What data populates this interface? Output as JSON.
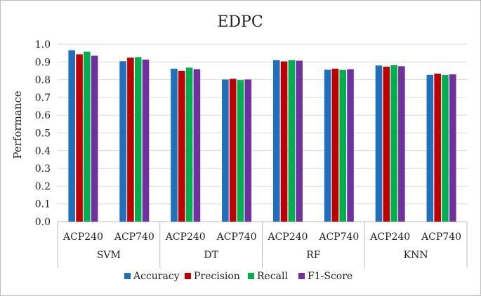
{
  "chart_data": {
    "type": "bar",
    "title": "EDPC",
    "ylabel": "Performance",
    "xlabel": "",
    "ylim": [
      0,
      1
    ],
    "yticks": [
      "0.0",
      "0.1",
      "0.2",
      "0.3",
      "0.4",
      "0.5",
      "0.6",
      "0.7",
      "0.8",
      "0.9",
      "1.0"
    ],
    "groups": [
      "SVM",
      "DT",
      "RF",
      "KNN"
    ],
    "categories": [
      "ACP240",
      "ACP740",
      "ACP240",
      "ACP740",
      "ACP240",
      "ACP740",
      "ACP240",
      "ACP740"
    ],
    "legend_position": "bottom",
    "series": [
      {
        "name": "Accuracy",
        "color": "#1f6fbf",
        "values": [
          0.966,
          0.904,
          0.862,
          0.801,
          0.91,
          0.856,
          0.88,
          0.827
        ]
      },
      {
        "name": "Precision",
        "color": "#c00000",
        "values": [
          0.943,
          0.924,
          0.85,
          0.805,
          0.903,
          0.862,
          0.873,
          0.834
        ]
      },
      {
        "name": "Recall",
        "color": "#00b050",
        "values": [
          0.958,
          0.927,
          0.868,
          0.798,
          0.91,
          0.855,
          0.882,
          0.826
        ]
      },
      {
        "name": "F1-Score",
        "color": "#7030a0",
        "values": [
          0.935,
          0.913,
          0.859,
          0.801,
          0.907,
          0.859,
          0.876,
          0.83
        ]
      }
    ]
  }
}
